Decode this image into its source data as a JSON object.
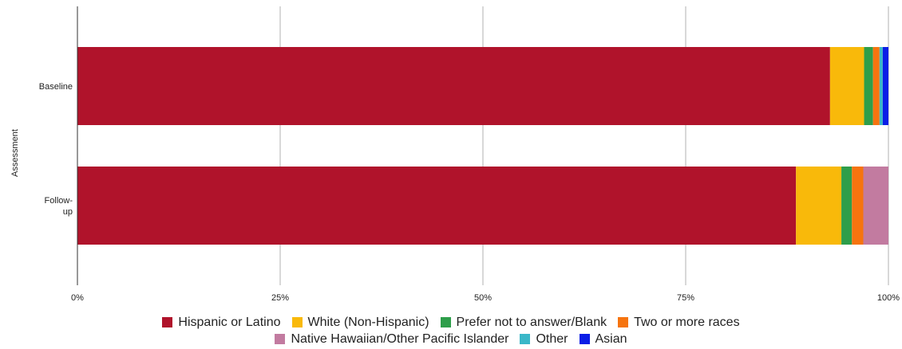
{
  "chart_data": {
    "type": "bar",
    "orientation": "horizontal",
    "stacked": "percent",
    "title": "",
    "xlabel": "",
    "ylabel": "Assessment",
    "xlim": [
      0,
      100
    ],
    "xticks": [
      "0%",
      "25%",
      "50%",
      "75%",
      "100%"
    ],
    "grid": true,
    "legend_position": "bottom",
    "categories": [
      "Baseline",
      "Follow-\nup"
    ],
    "category_lines": [
      [
        "Baseline"
      ],
      [
        "Follow-",
        "up"
      ]
    ],
    "series": [
      {
        "name": "Hispanic or Latino",
        "color": "#b0132b",
        "values": [
          92.8,
          88.6
        ]
      },
      {
        "name": "White (Non-Hispanic)",
        "color": "#f9b90a",
        "values": [
          4.2,
          5.6
        ]
      },
      {
        "name": "Prefer not to answer/Blank",
        "color": "#2e9e4a",
        "values": [
          1.1,
          1.3
        ]
      },
      {
        "name": "Two or more races",
        "color": "#f6740f",
        "values": [
          0.8,
          1.4
        ]
      },
      {
        "name": "Native Hawaiian/Other Pacific Islander",
        "color": "#c27ba0",
        "values": [
          0.0,
          3.1
        ]
      },
      {
        "name": "Other",
        "color": "#3ab7c8",
        "values": [
          0.4,
          0.0
        ]
      },
      {
        "name": "Asian",
        "color": "#0b1ee6",
        "values": [
          0.7,
          0.0
        ]
      }
    ]
  }
}
